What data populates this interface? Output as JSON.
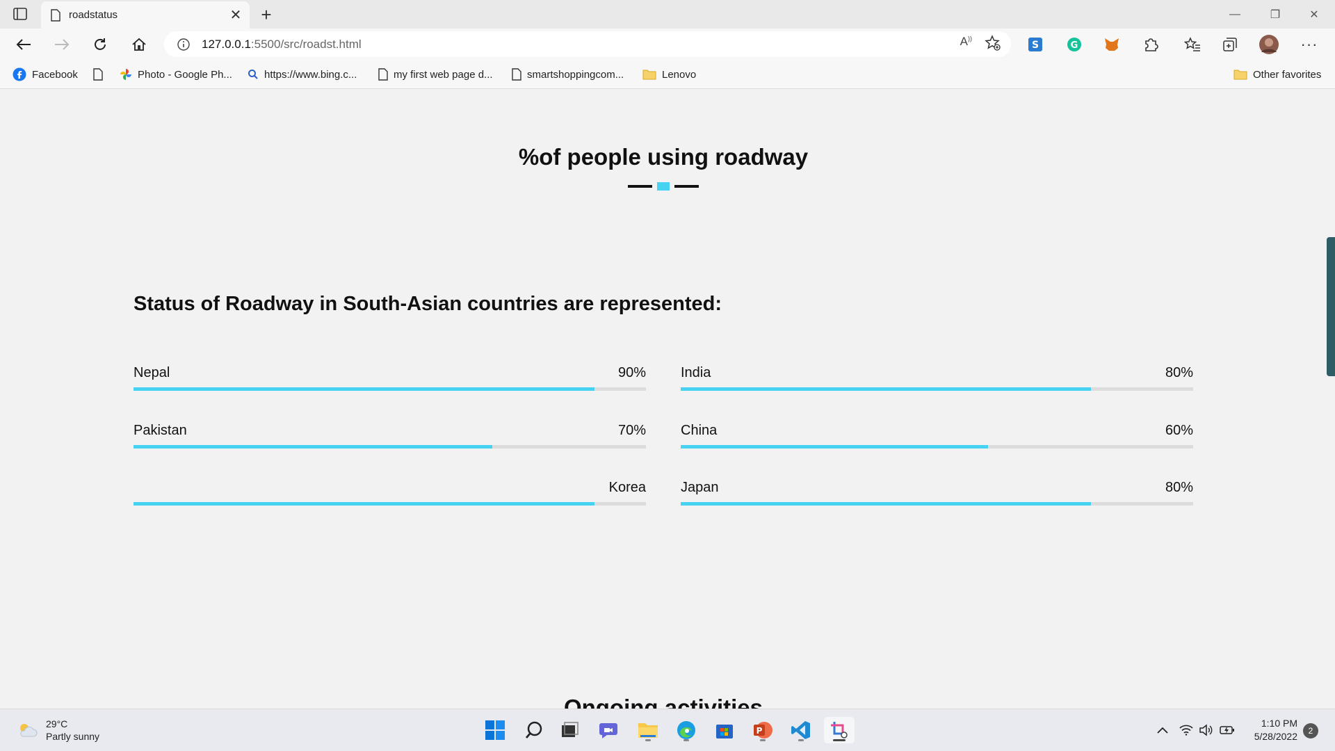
{
  "browser": {
    "tab_title": "roadstatus",
    "url_host": "127.0.0.1",
    "url_path": ":5500/src/roadst.html",
    "favorites": [
      {
        "label": "Facebook",
        "icon": "facebook-icon"
      },
      {
        "label": "",
        "icon": "page-icon"
      },
      {
        "label": "Photo - Google Ph...",
        "icon": "google-photos-icon"
      },
      {
        "label": "https://www.bing.c...",
        "icon": "search-icon"
      },
      {
        "label": "my first web page d...",
        "icon": "page-icon"
      },
      {
        "label": "smartshoppingcom...",
        "icon": "page-icon"
      },
      {
        "label": "Lenovo",
        "icon": "folder-icon"
      }
    ],
    "other_favorites": "Other favorites"
  },
  "page": {
    "heading": "%of people using roadway",
    "subheading": "Status of Roadway in South-Asian countries are represented:",
    "accent_color": "#46d3f2",
    "bars": [
      {
        "name": "Nepal",
        "value_label": "90%",
        "fill": 0.9
      },
      {
        "name": "India",
        "value_label": "80%",
        "fill": 0.8
      },
      {
        "name": "Pakistan",
        "value_label": "70%",
        "fill": 0.7
      },
      {
        "name": "China",
        "value_label": "60%",
        "fill": 0.6
      },
      {
        "name": "",
        "value_label": "Korea",
        "fill": 0.9
      },
      {
        "name": "Japan",
        "value_label": "80%",
        "fill": 0.8
      }
    ],
    "next_heading": "Ongoing activities"
  },
  "taskbar": {
    "temperature": "29°C",
    "weather": "Partly sunny",
    "time": "1:10 PM",
    "date": "5/28/2022",
    "notifications": "2"
  }
}
